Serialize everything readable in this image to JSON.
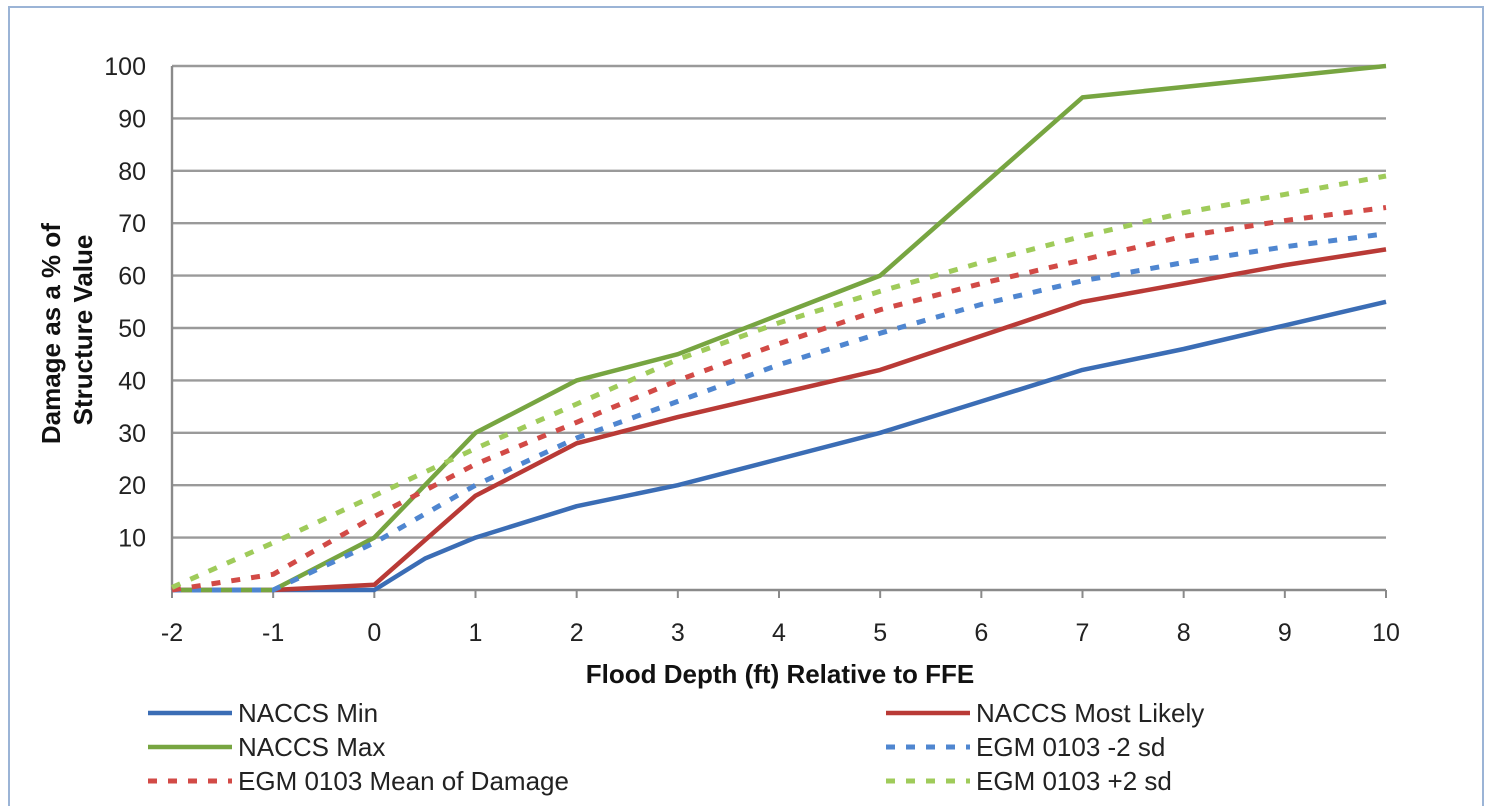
{
  "chart_data": {
    "type": "line",
    "title": "",
    "xlabel": "Flood Depth (ft) Relative to FFE",
    "ylabel_lines": [
      "Damage as a % of",
      "Structure Value"
    ],
    "xlim": [
      -2,
      10
    ],
    "ylim": [
      0,
      100
    ],
    "x_ticks": [
      -2,
      -1,
      0,
      1,
      2,
      3,
      4,
      5,
      6,
      7,
      8,
      9,
      10
    ],
    "y_ticks": [
      10,
      20,
      30,
      40,
      50,
      60,
      70,
      80,
      90,
      100
    ],
    "grid": "horizontal",
    "legend_position": "bottom",
    "series": [
      {
        "name": "NACCS Min",
        "color": "#3b6db5",
        "style": "solid",
        "x": [
          -2,
          -1,
          0,
          0.5,
          1,
          2,
          3,
          4,
          5,
          6,
          7,
          8,
          9,
          10
        ],
        "y": [
          0,
          0,
          0,
          6,
          10,
          16,
          20,
          25,
          30,
          36,
          42,
          46,
          50.5,
          55
        ]
      },
      {
        "name": "NACCS Most Likely",
        "color": "#b93a36",
        "style": "solid",
        "x": [
          -2,
          -1,
          0,
          1,
          2,
          3,
          4,
          5,
          6,
          7,
          8,
          9,
          10
        ],
        "y": [
          0,
          0,
          1,
          18,
          28,
          33,
          37.5,
          42,
          48.5,
          55,
          58.5,
          62,
          65
        ]
      },
      {
        "name": "NACCS Max",
        "color": "#77a541",
        "style": "solid",
        "x": [
          -2,
          -1,
          0,
          1,
          2,
          3,
          4,
          5,
          6,
          7,
          8,
          9,
          10
        ],
        "y": [
          0,
          0,
          10,
          30,
          40,
          45,
          52.5,
          60,
          77,
          94,
          96,
          98,
          100
        ]
      },
      {
        "name": "EGM 0103 -2 sd",
        "color": "#4f86d0",
        "style": "dashed",
        "x": [
          -2,
          -1,
          0,
          1,
          2,
          3,
          4,
          5,
          6,
          7,
          8,
          9,
          10
        ],
        "y": [
          0,
          0,
          9,
          20,
          29,
          36,
          43,
          49,
          54.5,
          59,
          62.5,
          65.5,
          68
        ]
      },
      {
        "name": "EGM 0103 Mean of Damage",
        "color": "#d24a46",
        "style": "dashed",
        "x": [
          -2,
          -1,
          0,
          1,
          2,
          3,
          4,
          5,
          6,
          7,
          8,
          9,
          10
        ],
        "y": [
          0,
          3,
          14,
          24,
          32,
          40,
          47,
          53.5,
          58.5,
          63,
          67.5,
          70.5,
          73
        ]
      },
      {
        "name": "EGM 0103 +2 sd",
        "color": "#9fcb5a",
        "style": "dashed",
        "x": [
          -2,
          -1,
          0,
          1,
          2,
          3,
          4,
          5,
          6,
          7,
          8,
          9,
          10
        ],
        "y": [
          0.5,
          9,
          18,
          27,
          35.5,
          44,
          51,
          57,
          62.5,
          67.5,
          72,
          75.5,
          79
        ]
      }
    ]
  }
}
